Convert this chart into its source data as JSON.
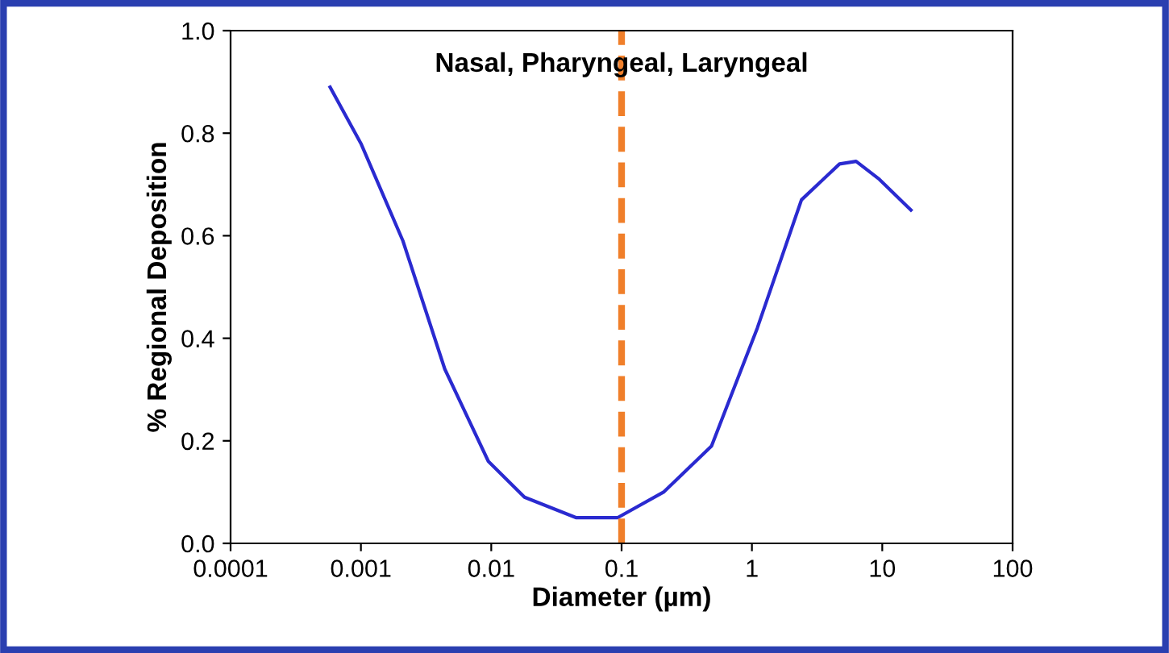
{
  "chart_data": {
    "type": "line",
    "title": "Nasal, Pharyngeal, Laryngeal",
    "xlabel": "Diameter (µm)",
    "ylabel": "% Regional Deposition",
    "log": "x",
    "xlim": [
      0.0001,
      100
    ],
    "xticks": [
      0.0001,
      0.001,
      0.01,
      0.1,
      1,
      10,
      100
    ],
    "ylim": [
      0.0,
      1.0
    ],
    "yticks": [
      {
        "value": 0,
        "label": "0.0"
      },
      0.2,
      0.4,
      0.6,
      0.8,
      {
        "value": 1,
        "label": "1.0"
      }
    ],
    "grid": false,
    "legend": false,
    "marker": "none",
    "line_style": "solid",
    "series": [
      {
        "color": "#2a2ad0",
        "x": [
          0.00058,
          0.001,
          0.0021,
          0.0044,
          0.0095,
          0.018,
          0.045,
          0.093,
          0.21,
          0.49,
          1.1,
          2.4,
          4.7,
          6.3,
          9.5,
          16.6
        ],
        "values": [
          0.89,
          0.78,
          0.59,
          0.34,
          0.16,
          0.09,
          0.05,
          0.05,
          0.1,
          0.19,
          0.42,
          0.67,
          0.74,
          0.745,
          0.71,
          0.65
        ]
      }
    ],
    "ref_lines": [
      {
        "axis": "x",
        "value": 0.1,
        "color": "#f07f2a",
        "line_style": "dashed"
      }
    ]
  }
}
